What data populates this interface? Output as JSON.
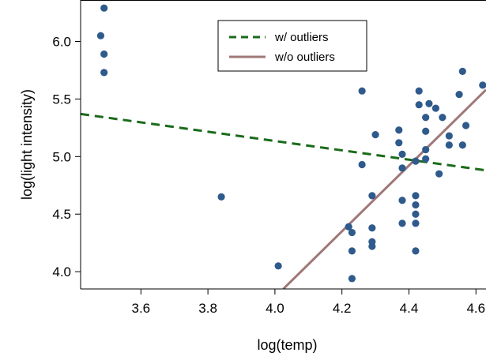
{
  "chart_data": {
    "type": "scatter",
    "title": "",
    "xlabel": "log(temp)",
    "ylabel": "log(light intensity)",
    "xlim": [
      3.42,
      4.63
    ],
    "ylim": [
      3.85,
      6.36
    ],
    "xticks": [
      "3.6",
      "3.8",
      "4.0",
      "4.2",
      "4.4",
      "4.6"
    ],
    "yticks": [
      "4.0",
      "4.5",
      "5.0",
      "5.5",
      "6.0"
    ],
    "grid": false,
    "legend_position": "top-center",
    "points": {
      "color": "#2f5a8c",
      "x": [
        3.49,
        3.48,
        3.49,
        3.49,
        3.84,
        4.01,
        4.22,
        4.23,
        4.23,
        4.23,
        4.26,
        4.26,
        4.29,
        4.29,
        4.29,
        4.29,
        4.3,
        4.37,
        4.37,
        4.38,
        4.38,
        4.38,
        4.38,
        4.42,
        4.42,
        4.42,
        4.42,
        4.42,
        4.42,
        4.43,
        4.43,
        4.45,
        4.45,
        4.45,
        4.45,
        4.46,
        4.48,
        4.49,
        4.5,
        4.52,
        4.52,
        4.55,
        4.56,
        4.56,
        4.57,
        4.62
      ],
      "y": [
        6.29,
        6.05,
        5.89,
        5.73,
        4.65,
        4.05,
        4.39,
        4.34,
        4.18,
        3.94,
        5.57,
        4.93,
        4.66,
        4.38,
        4.26,
        4.22,
        5.19,
        5.23,
        5.12,
        5.02,
        4.9,
        4.62,
        4.42,
        4.66,
        4.58,
        4.5,
        4.42,
        4.18,
        4.96,
        5.57,
        5.45,
        5.34,
        5.22,
        5.06,
        4.98,
        5.46,
        5.42,
        4.85,
        5.34,
        5.18,
        5.1,
        5.54,
        5.74,
        5.1,
        5.27,
        5.62
      ]
    },
    "series": [
      {
        "name": "w/ outliers",
        "type": "line",
        "style": "dashed",
        "color": "#1a6b1a",
        "x": [
          3.42,
          4.63
        ],
        "y": [
          5.37,
          4.88
        ]
      },
      {
        "name": "w/o outliers",
        "type": "line",
        "style": "solid",
        "color": "#a07878",
        "x": [
          4.025,
          4.63
        ],
        "y": [
          3.85,
          5.58
        ]
      }
    ]
  }
}
